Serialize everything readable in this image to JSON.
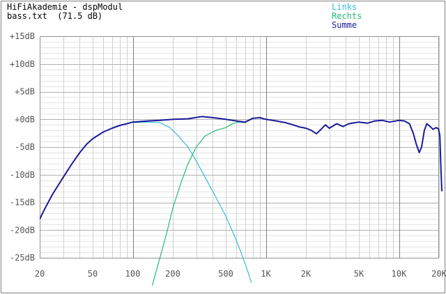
{
  "header": {
    "title": "HiFiAkademie - dspModul",
    "subtitle": "bass.txt  (71.5 dB)"
  },
  "chart_data": {
    "type": "line",
    "title": "HiFiAkademie - dspModul",
    "subtitle": "bass.txt  (71.5 dB)",
    "xlabel": "",
    "ylabel": "",
    "xscale": "log",
    "xlim": [
      20,
      20000
    ],
    "ylim": [
      -25,
      15
    ],
    "grid": true,
    "legend_position": "top-right",
    "x_tick_labels": [
      {
        "value": 20,
        "label": "20"
      },
      {
        "value": 50,
        "label": "50"
      },
      {
        "value": 100,
        "label": "100"
      },
      {
        "value": 200,
        "label": "200"
      },
      {
        "value": 500,
        "label": "500"
      },
      {
        "value": 1000,
        "label": "1K"
      },
      {
        "value": 2000,
        "label": "2K"
      },
      {
        "value": 5000,
        "label": "5K"
      },
      {
        "value": 10000,
        "label": "10K"
      },
      {
        "value": 20000,
        "label": "20K"
      }
    ],
    "y_tick_labels": [
      {
        "value": 15,
        "label": "+15dB"
      },
      {
        "value": 10,
        "label": "+10dB"
      },
      {
        "value": 5,
        "label": "+5dB"
      },
      {
        "value": 0,
        "label": "+0dB"
      },
      {
        "value": -5,
        "label": "-5dB"
      },
      {
        "value": -10,
        "label": "-10dB"
      },
      {
        "value": -15,
        "label": "-15dB"
      },
      {
        "value": -20,
        "label": "-20dB"
      },
      {
        "value": -25,
        "label": "-25dB"
      }
    ],
    "series": [
      {
        "name": "Links",
        "color": "#33bbdd",
        "points": [
          [
            100,
            -0.6
          ],
          [
            130,
            -0.5
          ],
          [
            160,
            -0.6
          ],
          [
            190,
            -1.5
          ],
          [
            220,
            -3
          ],
          [
            260,
            -5
          ],
          [
            300,
            -7.5
          ],
          [
            350,
            -10.5
          ],
          [
            420,
            -14
          ],
          [
            500,
            -17.5
          ],
          [
            580,
            -21
          ],
          [
            650,
            -24
          ],
          [
            720,
            -27
          ],
          [
            780,
            -29.5
          ]
        ]
      },
      {
        "name": "Rechts",
        "color": "#22bb77",
        "points": [
          [
            140,
            -30
          ],
          [
            160,
            -25
          ],
          [
            180,
            -20.5
          ],
          [
            200,
            -16
          ],
          [
            230,
            -11.5
          ],
          [
            260,
            -8
          ],
          [
            300,
            -5
          ],
          [
            350,
            -3
          ],
          [
            420,
            -2
          ],
          [
            500,
            -1.5
          ],
          [
            560,
            -0.8
          ],
          [
            620,
            -0.5
          ],
          [
            700,
            -0.6
          ]
        ]
      },
      {
        "name": "Summe",
        "color": "#1a1a99",
        "points": [
          [
            20,
            -18
          ],
          [
            22,
            -16
          ],
          [
            25,
            -13.5
          ],
          [
            30,
            -10.5
          ],
          [
            35,
            -8
          ],
          [
            40,
            -6
          ],
          [
            45,
            -4.5
          ],
          [
            50,
            -3.5
          ],
          [
            60,
            -2.3
          ],
          [
            70,
            -1.6
          ],
          [
            80,
            -1.1
          ],
          [
            90,
            -0.8
          ],
          [
            100,
            -0.5
          ],
          [
            130,
            -0.3
          ],
          [
            160,
            -0.2
          ],
          [
            200,
            0
          ],
          [
            260,
            0.1
          ],
          [
            330,
            0.5
          ],
          [
            400,
            0.3
          ],
          [
            500,
            0
          ],
          [
            600,
            -0.3
          ],
          [
            700,
            -0.5
          ],
          [
            800,
            0.2
          ],
          [
            900,
            0.3
          ],
          [
            1000,
            0
          ],
          [
            1200,
            -0.3
          ],
          [
            1400,
            -0.6
          ],
          [
            1600,
            -1
          ],
          [
            1800,
            -1.4
          ],
          [
            2000,
            -1.6
          ],
          [
            2200,
            -2
          ],
          [
            2400,
            -2.6
          ],
          [
            2600,
            -1.8
          ],
          [
            2800,
            -1
          ],
          [
            3000,
            -1.6
          ],
          [
            3400,
            -0.8
          ],
          [
            3800,
            -1.3
          ],
          [
            4200,
            -0.8
          ],
          [
            5000,
            -0.5
          ],
          [
            5800,
            -0.7
          ],
          [
            6600,
            -0.3
          ],
          [
            7500,
            -0.2
          ],
          [
            8500,
            -0.5
          ],
          [
            10000,
            -0.2
          ],
          [
            11000,
            -0.3
          ],
          [
            12000,
            -0.8
          ],
          [
            12800,
            -2.5
          ],
          [
            13500,
            -4.5
          ],
          [
            14200,
            -6
          ],
          [
            14800,
            -5
          ],
          [
            15500,
            -2
          ],
          [
            16200,
            -0.8
          ],
          [
            17000,
            -1.2
          ],
          [
            18000,
            -1.8
          ],
          [
            19000,
            -1.5
          ],
          [
            19800,
            -1.7
          ],
          [
            20300,
            -3
          ],
          [
            20600,
            -8
          ],
          [
            21000,
            -13
          ]
        ]
      }
    ]
  }
}
